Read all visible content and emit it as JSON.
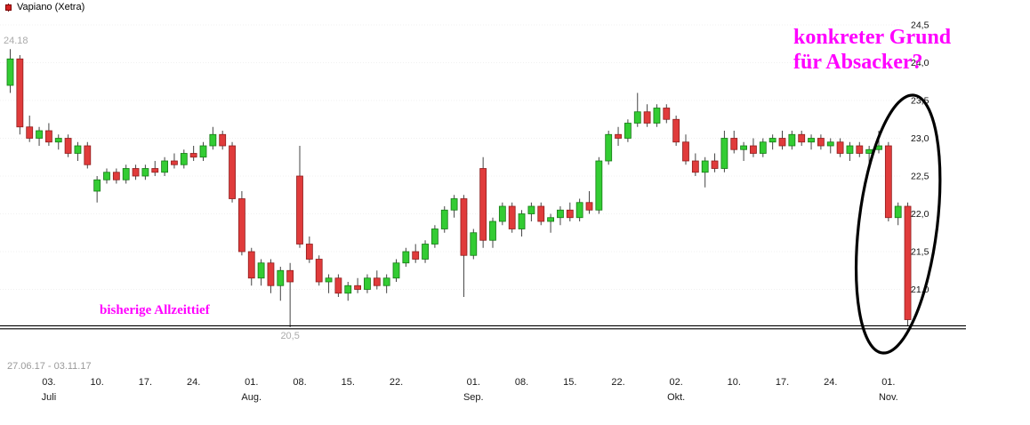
{
  "legend": {
    "label": "Vapiano (Xetra)"
  },
  "annotations": {
    "question_line1": "konkreter Grund",
    "question_line2": "für Absacker?",
    "atl_text": "bisherige Allzeittief",
    "max_price_label": "24.18",
    "min_price_label": "20,5",
    "period": "27.06.17 - 03.11.17",
    "accent_color": "#ff00ff"
  },
  "chart_data": {
    "type": "candlestick",
    "title": "Vapiano (Xetra)",
    "ylim": [
      20.3,
      24.6
    ],
    "grid": true,
    "atl_line_price": 20.5,
    "min_label_index": 29,
    "max_label_index": 0,
    "colors": {
      "up": "#33cc33",
      "up_border": "#157a15",
      "down": "#e03b3b",
      "down_border": "#8f1d1d",
      "wick": "#444444",
      "annotation": "#ff00ff"
    },
    "y_axis": {
      "labels": [
        {
          "text": "24,5",
          "value": 24.5
        },
        {
          "text": "24,0",
          "value": 24.0
        },
        {
          "text": "23,5",
          "value": 23.5
        },
        {
          "text": "23,0",
          "value": 23.0
        },
        {
          "text": "22,5",
          "value": 22.5
        },
        {
          "text": "22,0",
          "value": 22.0
        },
        {
          "text": "21,5",
          "value": 21.5
        },
        {
          "text": "21,0",
          "value": 21.0
        }
      ]
    },
    "x_ticks": [
      {
        "label": "03.",
        "index": 4
      },
      {
        "label": "10.",
        "index": 9
      },
      {
        "label": "17.",
        "index": 14
      },
      {
        "label": "24.",
        "index": 19
      },
      {
        "label": "01.",
        "index": 25
      },
      {
        "label": "08.",
        "index": 30
      },
      {
        "label": "15.",
        "index": 35
      },
      {
        "label": "22.",
        "index": 40
      },
      {
        "label": "01.",
        "index": 48
      },
      {
        "label": "08.",
        "index": 53
      },
      {
        "label": "15.",
        "index": 58
      },
      {
        "label": "22.",
        "index": 63
      },
      {
        "label": "02.",
        "index": 69
      },
      {
        "label": "10.",
        "index": 75
      },
      {
        "label": "17.",
        "index": 80
      },
      {
        "label": "24.",
        "index": 85
      },
      {
        "label": "01.",
        "index": 91
      }
    ],
    "month_labels": [
      {
        "label": "Juli",
        "index": 4
      },
      {
        "label": "Aug.",
        "index": 25
      },
      {
        "label": "Sep.",
        "index": 48
      },
      {
        "label": "Okt.",
        "index": 69
      },
      {
        "label": "Nov.",
        "index": 91
      }
    ],
    "candles": [
      [
        "27.06",
        23.7,
        24.18,
        23.6,
        24.05
      ],
      [
        "28.06",
        24.05,
        24.1,
        23.05,
        23.15
      ],
      [
        "29.06",
        23.15,
        23.3,
        22.95,
        23.0
      ],
      [
        "30.06",
        23.0,
        23.15,
        22.9,
        23.1
      ],
      [
        "03.07",
        23.1,
        23.2,
        22.9,
        22.95
      ],
      [
        "04.07",
        22.95,
        23.05,
        22.85,
        23.0
      ],
      [
        "05.07",
        23.0,
        23.05,
        22.75,
        22.8
      ],
      [
        "06.07",
        22.8,
        22.95,
        22.7,
        22.9
      ],
      [
        "07.07",
        22.9,
        22.95,
        22.6,
        22.65
      ],
      [
        "10.07",
        22.3,
        22.5,
        22.15,
        22.45
      ],
      [
        "11.07",
        22.45,
        22.6,
        22.4,
        22.55
      ],
      [
        "12.07",
        22.55,
        22.6,
        22.4,
        22.45
      ],
      [
        "13.07",
        22.45,
        22.65,
        22.4,
        22.6
      ],
      [
        "14.07",
        22.6,
        22.65,
        22.45,
        22.5
      ],
      [
        "17.07",
        22.5,
        22.65,
        22.45,
        22.6
      ],
      [
        "18.07",
        22.6,
        22.7,
        22.5,
        22.55
      ],
      [
        "19.07",
        22.55,
        22.75,
        22.5,
        22.7
      ],
      [
        "20.07",
        22.7,
        22.8,
        22.6,
        22.65
      ],
      [
        "21.07",
        22.65,
        22.85,
        22.6,
        22.8
      ],
      [
        "24.07",
        22.8,
        22.9,
        22.7,
        22.75
      ],
      [
        "25.07",
        22.75,
        22.95,
        22.7,
        22.9
      ],
      [
        "26.07",
        22.9,
        23.15,
        22.85,
        23.05
      ],
      [
        "27.07",
        23.05,
        23.1,
        22.85,
        22.9
      ],
      [
        "28.07",
        22.9,
        22.95,
        22.15,
        22.2
      ],
      [
        "31.07",
        22.2,
        22.3,
        21.45,
        21.5
      ],
      [
        "01.08",
        21.5,
        21.55,
        21.05,
        21.15
      ],
      [
        "02.08",
        21.15,
        21.4,
        21.05,
        21.35
      ],
      [
        "03.08",
        21.35,
        21.4,
        20.95,
        21.05
      ],
      [
        "04.08",
        21.05,
        21.3,
        20.85,
        21.25
      ],
      [
        "07.08",
        21.25,
        21.35,
        20.5,
        21.1
      ],
      [
        "08.08",
        22.5,
        22.9,
        21.55,
        21.6
      ],
      [
        "09.08",
        21.6,
        21.7,
        21.35,
        21.4
      ],
      [
        "10.08",
        21.4,
        21.45,
        21.05,
        21.1
      ],
      [
        "11.08",
        21.1,
        21.2,
        20.95,
        21.15
      ],
      [
        "14.08",
        21.15,
        21.2,
        20.9,
        20.95
      ],
      [
        "15.08",
        20.95,
        21.1,
        20.85,
        21.05
      ],
      [
        "16.08",
        21.05,
        21.15,
        20.95,
        21.0
      ],
      [
        "17.08",
        21.0,
        21.2,
        20.95,
        21.15
      ],
      [
        "18.08",
        21.15,
        21.25,
        21.0,
        21.05
      ],
      [
        "21.08",
        21.05,
        21.2,
        20.95,
        21.15
      ],
      [
        "22.08",
        21.15,
        21.4,
        21.1,
        21.35
      ],
      [
        "23.08",
        21.35,
        21.55,
        21.3,
        21.5
      ],
      [
        "24.08",
        21.5,
        21.6,
        21.35,
        21.4
      ],
      [
        "25.08",
        21.4,
        21.65,
        21.35,
        21.6
      ],
      [
        "28.08",
        21.6,
        21.85,
        21.55,
        21.8
      ],
      [
        "29.08",
        21.8,
        22.1,
        21.75,
        22.05
      ],
      [
        "30.08",
        22.05,
        22.25,
        21.95,
        22.2
      ],
      [
        "31.08",
        22.2,
        22.25,
        20.9,
        21.45
      ],
      [
        "01.09",
        21.45,
        21.8,
        21.4,
        21.75
      ],
      [
        "04.09",
        22.6,
        22.75,
        21.55,
        21.65
      ],
      [
        "05.09",
        21.65,
        21.95,
        21.55,
        21.9
      ],
      [
        "06.09",
        21.9,
        22.15,
        21.85,
        22.1
      ],
      [
        "07.09",
        22.1,
        22.15,
        21.75,
        21.8
      ],
      [
        "08.09",
        21.8,
        22.05,
        21.7,
        22.0
      ],
      [
        "11.09",
        22.0,
        22.15,
        21.9,
        22.1
      ],
      [
        "12.09",
        22.1,
        22.15,
        21.85,
        21.9
      ],
      [
        "13.09",
        21.9,
        22.0,
        21.75,
        21.95
      ],
      [
        "14.09",
        21.95,
        22.1,
        21.85,
        22.05
      ],
      [
        "15.09",
        22.05,
        22.15,
        21.9,
        21.95
      ],
      [
        "18.09",
        21.95,
        22.2,
        21.9,
        22.15
      ],
      [
        "19.09",
        22.15,
        22.3,
        22.0,
        22.05
      ],
      [
        "20.09",
        22.05,
        22.75,
        22.0,
        22.7
      ],
      [
        "21.09",
        22.7,
        23.1,
        22.65,
        23.05
      ],
      [
        "22.09",
        23.05,
        23.15,
        22.9,
        23.0
      ],
      [
        "25.09",
        23.0,
        23.25,
        22.95,
        23.2
      ],
      [
        "26.09",
        23.2,
        23.6,
        23.15,
        23.35
      ],
      [
        "27.09",
        23.35,
        23.45,
        23.15,
        23.2
      ],
      [
        "28.09",
        23.2,
        23.45,
        23.15,
        23.4
      ],
      [
        "29.09",
        23.4,
        23.45,
        23.2,
        23.25
      ],
      [
        "02.10",
        23.25,
        23.3,
        22.9,
        22.95
      ],
      [
        "03.10",
        22.95,
        23.05,
        22.65,
        22.7
      ],
      [
        "04.10",
        22.7,
        22.8,
        22.5,
        22.55
      ],
      [
        "05.10",
        22.55,
        22.75,
        22.35,
        22.7
      ],
      [
        "06.10",
        22.7,
        22.8,
        22.55,
        22.6
      ],
      [
        "09.10",
        22.6,
        23.1,
        22.55,
        23.0
      ],
      [
        "10.10",
        23.0,
        23.1,
        22.8,
        22.85
      ],
      [
        "11.10",
        22.85,
        22.95,
        22.7,
        22.9
      ],
      [
        "12.10",
        22.9,
        23.0,
        22.75,
        22.8
      ],
      [
        "13.10",
        22.8,
        23.0,
        22.75,
        22.95
      ],
      [
        "16.10",
        22.95,
        23.05,
        22.85,
        23.0
      ],
      [
        "17.10",
        23.0,
        23.1,
        22.85,
        22.9
      ],
      [
        "18.10",
        22.9,
        23.1,
        22.85,
        23.05
      ],
      [
        "19.10",
        23.05,
        23.1,
        22.9,
        22.95
      ],
      [
        "20.10",
        22.95,
        23.05,
        22.85,
        23.0
      ],
      [
        "23.10",
        23.0,
        23.05,
        22.85,
        22.9
      ],
      [
        "24.10",
        22.9,
        23.0,
        22.8,
        22.95
      ],
      [
        "25.10",
        22.95,
        23.0,
        22.75,
        22.8
      ],
      [
        "26.10",
        22.8,
        22.95,
        22.7,
        22.9
      ],
      [
        "27.10",
        22.9,
        22.95,
        22.75,
        22.8
      ],
      [
        "30.10",
        22.8,
        22.9,
        22.65,
        22.85
      ],
      [
        "31.10",
        22.85,
        23.1,
        22.8,
        22.9
      ],
      [
        "01.11",
        22.9,
        22.95,
        21.9,
        21.95
      ],
      [
        "02.11",
        21.95,
        22.15,
        21.85,
        22.1
      ],
      [
        "03.11",
        22.1,
        22.15,
        20.52,
        20.6
      ]
    ]
  }
}
